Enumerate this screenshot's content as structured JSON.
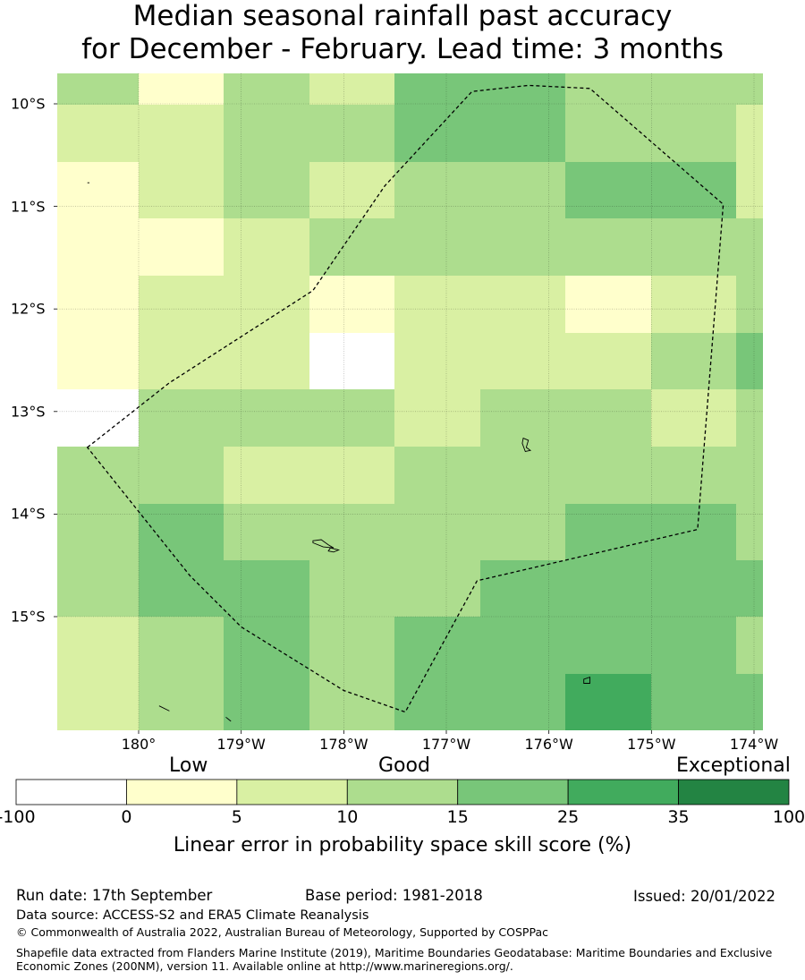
{
  "title": {
    "line1": "Median seasonal rainfall past accuracy",
    "line2": "for December - February. Lead time: 3 months"
  },
  "map": {
    "lon_range": [
      -180.8,
      -173.9
    ],
    "lat_range": [
      -16.11,
      -9.7
    ],
    "xticks": [
      {
        "lon": 180,
        "label": "180°"
      },
      {
        "lon": -179,
        "label": "179°W"
      },
      {
        "lon": -178,
        "label": "178°W"
      },
      {
        "lon": -177,
        "label": "177°W"
      },
      {
        "lon": -176,
        "label": "176°W"
      },
      {
        "lon": -175,
        "label": "175°W"
      },
      {
        "lon": -174,
        "label": "174°W"
      }
    ],
    "yticks": [
      {
        "lat": -10,
        "label": "10°S"
      },
      {
        "lat": -11,
        "label": "11°S"
      },
      {
        "lat": -12,
        "label": "12°S"
      },
      {
        "lat": -13,
        "label": "13°S"
      },
      {
        "lat": -14,
        "label": "14°S"
      },
      {
        "lat": -15,
        "label": "15°S"
      }
    ],
    "grid_cols": 9,
    "grid_rows": 12,
    "skill_categories": [
      [
        3,
        1,
        3,
        2,
        4,
        4,
        3,
        3,
        3
      ],
      [
        2,
        2,
        3,
        3,
        4,
        4,
        3,
        3,
        2
      ],
      [
        1,
        2,
        3,
        2,
        3,
        3,
        4,
        4,
        2
      ],
      [
        1,
        1,
        2,
        3,
        3,
        3,
        3,
        3,
        3
      ],
      [
        1,
        2,
        2,
        1,
        2,
        2,
        1,
        2,
        3
      ],
      [
        1,
        2,
        2,
        0,
        2,
        2,
        2,
        3,
        4
      ],
      [
        0,
        3,
        3,
        3,
        2,
        3,
        3,
        2,
        3
      ],
      [
        3,
        3,
        2,
        2,
        3,
        3,
        3,
        3,
        3
      ],
      [
        3,
        4,
        3,
        3,
        3,
        3,
        4,
        4,
        3
      ],
      [
        3,
        4,
        4,
        3,
        3,
        4,
        4,
        4,
        4
      ],
      [
        2,
        3,
        4,
        3,
        4,
        4,
        4,
        4,
        3
      ],
      [
        2,
        3,
        4,
        3,
        4,
        4,
        5,
        4,
        4
      ]
    ],
    "eez_boundary": [
      [
        -180.5,
        -13.35
      ],
      [
        -179.7,
        -12.72
      ],
      [
        -178.3,
        -11.82
      ],
      [
        -177.6,
        -10.8
      ],
      [
        -176.75,
        -9.88
      ],
      [
        -176.2,
        -9.82
      ],
      [
        -175.6,
        -9.85
      ],
      [
        -174.3,
        -10.98
      ],
      [
        -174.55,
        -14.15
      ],
      [
        -176.7,
        -14.65
      ],
      [
        -177.4,
        -15.93
      ],
      [
        -178.0,
        -15.72
      ],
      [
        -179.0,
        -15.1
      ],
      [
        -179.5,
        -14.6
      ],
      [
        -180.5,
        -13.35
      ]
    ],
    "islands": [
      {
        "name": "islet-a",
        "points": [
          [
            -180.5,
            -10.77
          ],
          [
            -180.48,
            -10.77
          ]
        ]
      },
      {
        "name": "islet-b",
        "points": [
          [
            -176.25,
            -13.26
          ],
          [
            -176.2,
            -13.28
          ],
          [
            -176.22,
            -13.35
          ],
          [
            -176.18,
            -13.38
          ],
          [
            -176.23,
            -13.39
          ],
          [
            -176.26,
            -13.31
          ]
        ]
      },
      {
        "name": "islet-c",
        "points": [
          [
            -178.3,
            -14.26
          ],
          [
            -178.22,
            -14.25
          ],
          [
            -178.15,
            -14.3
          ],
          [
            -178.1,
            -14.33
          ],
          [
            -178.2,
            -14.32
          ],
          [
            -178.3,
            -14.28
          ]
        ]
      },
      {
        "name": "islet-d",
        "points": [
          [
            -178.13,
            -14.33
          ],
          [
            -178.05,
            -14.35
          ],
          [
            -178.1,
            -14.37
          ],
          [
            -178.15,
            -14.36
          ]
        ]
      },
      {
        "name": "islet-e",
        "points": [
          [
            -175.66,
            -15.61
          ],
          [
            -175.6,
            -15.59
          ],
          [
            -175.6,
            -15.65
          ],
          [
            -175.66,
            -15.65
          ]
        ]
      },
      {
        "name": "islet-f",
        "points": [
          [
            -179.8,
            -15.87
          ],
          [
            -179.7,
            -15.92
          ]
        ]
      },
      {
        "name": "islet-g",
        "points": [
          [
            -179.15,
            -15.98
          ],
          [
            -179.1,
            -16.02
          ]
        ]
      }
    ]
  },
  "colorbar": {
    "category_labels": [
      "Low",
      "Good",
      "Exceptional"
    ],
    "colors": [
      "#ffffff",
      "#ffffcc",
      "#d9f0a3",
      "#addd8e",
      "#78c679",
      "#41ab5d",
      "#238443"
    ],
    "tick_labels": [
      "-100",
      "0",
      "5",
      "10",
      "15",
      "25",
      "35",
      "100"
    ],
    "axis_label": "Linear error in probability space skill score (%)"
  },
  "footer": {
    "run_date": "Run date: 17th September",
    "base_period": "Base period: 1981-2018",
    "issued": "Issued: 20/01/2022",
    "data_source": "Data source: ACCESS-S2 and ERA5 Climate Reanalysis",
    "copyright": "© Commonwealth of Australia 2022, Australian Bureau of Meteorology, Supported by COSPPac",
    "shapefile_note": "Shapefile data extracted from Flanders Marine Institute (2019), Maritime Boundaries Geodatabase: Maritime Boundaries and Exclusive Economic Zones (200NM), version 11. Available online at http://www.marineregions.org/."
  }
}
